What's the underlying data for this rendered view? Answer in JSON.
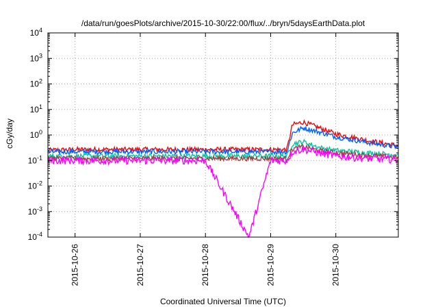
{
  "chart_data": {
    "type": "line",
    "title": "/data/run/goesPlots/archive/2015-10-30/22:00/flux/../bryn/5daysEarthData.plot",
    "xlabel": "Coordinated Universal Time (UTC)",
    "ylabel": "cGy/day",
    "y_scale": "log",
    "ylim": [
      0.0001,
      10000
    ],
    "xlim": [
      "2015-10-25 14:00",
      "2015-10-30 23:00"
    ],
    "grid": true,
    "y_tick_labels": [
      {
        "base": "10",
        "exp": "4"
      },
      {
        "base": "10",
        "exp": "3"
      },
      {
        "base": "10",
        "exp": "2"
      },
      {
        "base": "10",
        "exp": "1"
      },
      {
        "base": "10",
        "exp": "0"
      },
      {
        "base": "10",
        "exp": "-1"
      },
      {
        "base": "10",
        "exp": "-2"
      },
      {
        "base": "10",
        "exp": "-3"
      },
      {
        "base": "10",
        "exp": "-4"
      }
    ],
    "x_tick_labels": [
      "2015-10-26",
      "2015-10-27",
      "2015-10-28",
      "2015-10-29",
      "2015-10-30"
    ],
    "series": [
      {
        "color": "#ff0000",
        "x": [
          "2015-10-25 14:00",
          "2015-10-26 00:00",
          "2015-10-27 00:00",
          "2015-10-28 00:00",
          "2015-10-29 00:00",
          "2015-10-29 06:00",
          "2015-10-29 08:00",
          "2015-10-29 12:00",
          "2015-10-29 18:00",
          "2015-10-30 00:00",
          "2015-10-30 12:00",
          "2015-10-30 23:00"
        ],
        "y": [
          0.25,
          0.27,
          0.27,
          0.27,
          0.27,
          0.27,
          2.5,
          3.2,
          1.9,
          1.1,
          0.6,
          0.38
        ]
      },
      {
        "color": "#0060ff",
        "x": [
          "2015-10-25 14:00",
          "2015-10-26 00:00",
          "2015-10-27 00:00",
          "2015-10-28 00:00",
          "2015-10-29 00:00",
          "2015-10-29 06:00",
          "2015-10-29 08:00",
          "2015-10-29 12:00",
          "2015-10-29 18:00",
          "2015-10-30 00:00",
          "2015-10-30 12:00",
          "2015-10-30 23:00"
        ],
        "y": [
          0.22,
          0.22,
          0.22,
          0.22,
          0.22,
          0.22,
          1.2,
          1.9,
          1.3,
          0.85,
          0.5,
          0.33
        ]
      },
      {
        "color": "#00c8a0",
        "x": [
          "2015-10-25 14:00",
          "2015-10-26 00:00",
          "2015-10-27 00:00",
          "2015-10-28 00:00",
          "2015-10-29 00:00",
          "2015-10-29 06:00",
          "2015-10-29 08:00",
          "2015-10-29 12:00",
          "2015-10-29 18:00",
          "2015-10-30 00:00",
          "2015-10-30 12:00",
          "2015-10-30 23:00"
        ],
        "y": [
          0.15,
          0.15,
          0.15,
          0.15,
          0.15,
          0.15,
          0.45,
          0.55,
          0.32,
          0.25,
          0.2,
          0.17
        ]
      },
      {
        "color": "#a04040",
        "x": [
          "2015-10-25 14:00",
          "2015-10-26 00:00",
          "2015-10-27 00:00",
          "2015-10-28 00:00",
          "2015-10-29 00:00",
          "2015-10-29 06:00",
          "2015-10-29 08:00",
          "2015-10-29 12:00",
          "2015-10-29 18:00",
          "2015-10-30 00:00",
          "2015-10-30 12:00",
          "2015-10-30 23:00"
        ],
        "y": [
          0.12,
          0.12,
          0.12,
          0.12,
          0.12,
          0.12,
          0.28,
          0.35,
          0.24,
          0.2,
          0.16,
          0.13
        ]
      },
      {
        "color": "#ff00ff",
        "x": [
          "2015-10-25 14:00",
          "2015-10-26 00:00",
          "2015-10-27 00:00",
          "2015-10-28 00:00",
          "2015-10-28 16:00",
          "2015-10-29 00:00",
          "2015-10-29 06:00",
          "2015-10-29 08:00",
          "2015-10-29 12:00",
          "2015-10-29 18:00",
          "2015-10-30 00:00",
          "2015-10-30 12:00",
          "2015-10-30 23:00"
        ],
        "y": [
          0.1,
          0.1,
          0.1,
          0.1,
          0.0001,
          0.1,
          0.1,
          0.22,
          0.28,
          0.2,
          0.15,
          0.12,
          0.11
        ]
      }
    ]
  }
}
